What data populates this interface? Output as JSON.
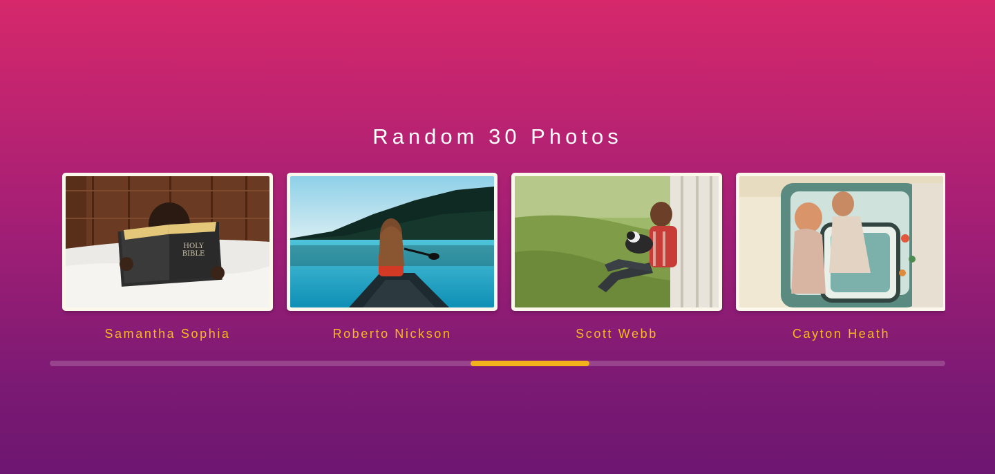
{
  "page": {
    "title": "Random 30 Photos"
  },
  "photos": [
    {
      "author": "Samantha Sophia",
      "image": "child-reading-holy-bible-on-bed",
      "book_text_1": "HOLY",
      "book_text_2": "BIBLE"
    },
    {
      "author": "Roberto Nickson",
      "image": "woman-paddling-canoe-on-lake"
    },
    {
      "author": "Scott Webb",
      "image": "man-and-dog-sitting-in-grass"
    },
    {
      "author": "Cayton Heath",
      "image": "couple-in-vintage-car"
    }
  ],
  "scroll": {
    "position_fraction": 0.47,
    "thumb_fraction": 0.133
  },
  "colors": {
    "accent": "#f2b21b",
    "name_text": "#f7bb1c",
    "frame": "#fbf7ea",
    "background_top": "#d6286b",
    "background_bottom": "#6d1671"
  }
}
